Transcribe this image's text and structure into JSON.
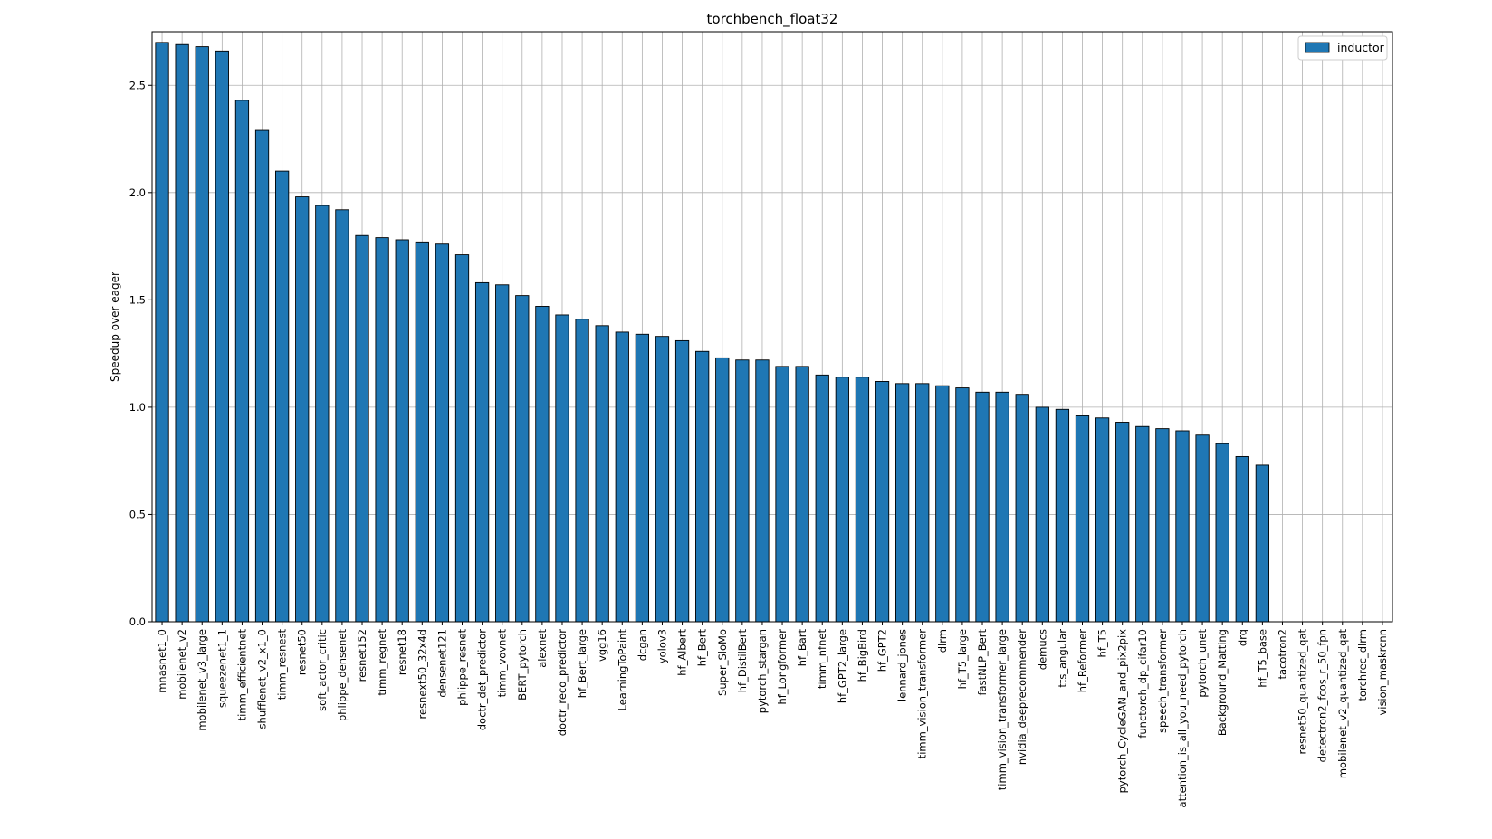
{
  "chart_data": {
    "type": "bar",
    "title": "torchbench_float32",
    "xlabel": "",
    "ylabel": "Speedup over eager",
    "ylim": [
      0,
      2.75
    ],
    "yticks": [
      "0.0",
      "0.5",
      "1.0",
      "1.5",
      "2.0",
      "2.5"
    ],
    "grid": true,
    "legend_position": "top-right",
    "bar_color": "#1f77b4",
    "categories": [
      "mnasnet1_0",
      "mobilenet_v2",
      "mobilenet_v3_large",
      "squeezenet1_1",
      "timm_efficientnet",
      "shufflenet_v2_x1_0",
      "timm_resnest",
      "resnet50",
      "soft_actor_critic",
      "phlippe_densenet",
      "resnet152",
      "timm_regnet",
      "resnet18",
      "resnext50_32x4d",
      "densenet121",
      "phlippe_resnet",
      "doctr_det_predictor",
      "timm_vovnet",
      "BERT_pytorch",
      "alexnet",
      "doctr_reco_predictor",
      "hf_Bert_large",
      "vgg16",
      "LearningToPaint",
      "dcgan",
      "yolov3",
      "hf_Albert",
      "hf_Bert",
      "Super_SloMo",
      "hf_DistilBert",
      "pytorch_stargan",
      "hf_Longformer",
      "hf_Bart",
      "timm_nfnet",
      "hf_GPT2_large",
      "hf_BigBird",
      "hf_GPT2",
      "lennard_jones",
      "timm_vision_transformer",
      "dlrm",
      "hf_T5_large",
      "fastNLP_Bert",
      "timm_vision_transformer_large",
      "nvidia_deeprecommender",
      "demucs",
      "tts_angular",
      "hf_Reformer",
      "hf_T5",
      "pytorch_CycleGAN_and_pix2pix",
      "functorch_dp_cifar10",
      "speech_transformer",
      "attention_is_all_you_need_pytorch",
      "pytorch_unet",
      "Background_Matting",
      "drq",
      "hf_T5_base",
      "tacotron2",
      "resnet50_quantized_qat",
      "detectron2_fcos_r_50_fpn",
      "mobilenet_v2_quantized_qat",
      "torchrec_dlrm",
      "vision_maskrcnn"
    ],
    "series": [
      {
        "name": "inductor",
        "values": [
          2.7,
          2.69,
          2.68,
          2.66,
          2.43,
          2.29,
          2.1,
          1.98,
          1.94,
          1.92,
          1.8,
          1.79,
          1.78,
          1.77,
          1.76,
          1.71,
          1.58,
          1.57,
          1.52,
          1.47,
          1.43,
          1.41,
          1.38,
          1.35,
          1.34,
          1.33,
          1.31,
          1.26,
          1.23,
          1.22,
          1.22,
          1.19,
          1.19,
          1.15,
          1.14,
          1.14,
          1.12,
          1.11,
          1.11,
          1.1,
          1.09,
          1.07,
          1.07,
          1.06,
          1.0,
          0.99,
          0.96,
          0.95,
          0.93,
          0.91,
          0.9,
          0.89,
          0.87,
          0.83,
          0.77,
          0.73,
          0,
          0,
          0,
          0,
          0,
          0
        ]
      }
    ]
  }
}
